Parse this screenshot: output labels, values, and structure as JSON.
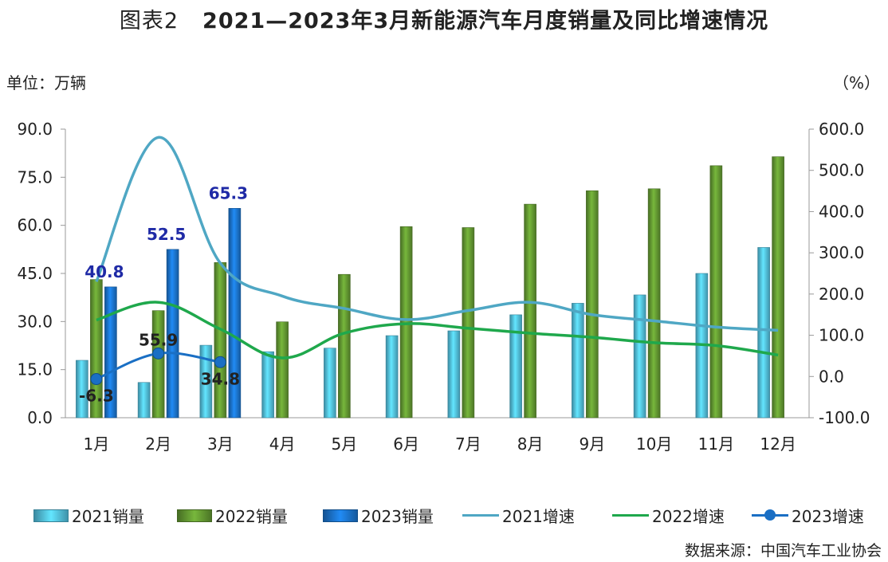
{
  "title_prefix": "图表2",
  "title_main": "2021—2023年3月新能源汽车月度销量及同比增速情况",
  "unit_left": "单位：万辆",
  "unit_right": "（%）",
  "source": "数据来源：中国汽车工业协会",
  "chart_data": {
    "type": "bar",
    "categories": [
      "1月",
      "2月",
      "3月",
      "4月",
      "5月",
      "6月",
      "7月",
      "8月",
      "9月",
      "10月",
      "11月",
      "12月"
    ],
    "y_left": {
      "ticks": [
        "0.0",
        "15.0",
        "30.0",
        "45.0",
        "60.0",
        "75.0",
        "90.0"
      ],
      "range": [
        0,
        90
      ]
    },
    "y_right": {
      "ticks": [
        "-100.0",
        "0.0",
        "100.0",
        "200.0",
        "300.0",
        "400.0",
        "500.0",
        "600.0"
      ],
      "range": [
        -100,
        600
      ]
    },
    "bar_series": [
      {
        "name": "2021销量",
        "color": "#4fb8d6",
        "values": [
          17.9,
          11.0,
          22.6,
          20.6,
          21.7,
          25.6,
          27.1,
          32.1,
          35.7,
          38.3,
          45.0,
          53.1
        ]
      },
      {
        "name": "2022销量",
        "color": "#5f9230",
        "values": [
          43.1,
          33.4,
          48.4,
          29.9,
          44.7,
          59.6,
          59.3,
          66.6,
          70.8,
          71.4,
          78.6,
          81.4
        ]
      },
      {
        "name": "2023销量",
        "color": "#1a6fc4",
        "values": [
          40.8,
          52.5,
          65.3
        ]
      }
    ],
    "bar_labels": {
      "values": [
        "40.8",
        "52.5",
        "65.3"
      ],
      "color": "#1f2aa6"
    },
    "line_series": [
      {
        "name": "2021增速",
        "color": "#4fa7c4",
        "values": [
          230,
          580,
          275,
          195,
          165,
          138,
          160,
          180,
          150,
          135,
          120,
          112
        ]
      },
      {
        "name": "2022增速",
        "color": "#1fa84c",
        "values": [
          137,
          180,
          115,
          45,
          105,
          128,
          117,
          105,
          95,
          82,
          75,
          52
        ]
      },
      {
        "name": "2023增速",
        "color": "#1a6fc4",
        "values": [
          -6.3,
          55.9,
          34.8
        ],
        "labels": [
          "-6.3",
          "55.9",
          "34.8"
        ]
      }
    ],
    "grid": false,
    "legend_position": "bottom"
  }
}
